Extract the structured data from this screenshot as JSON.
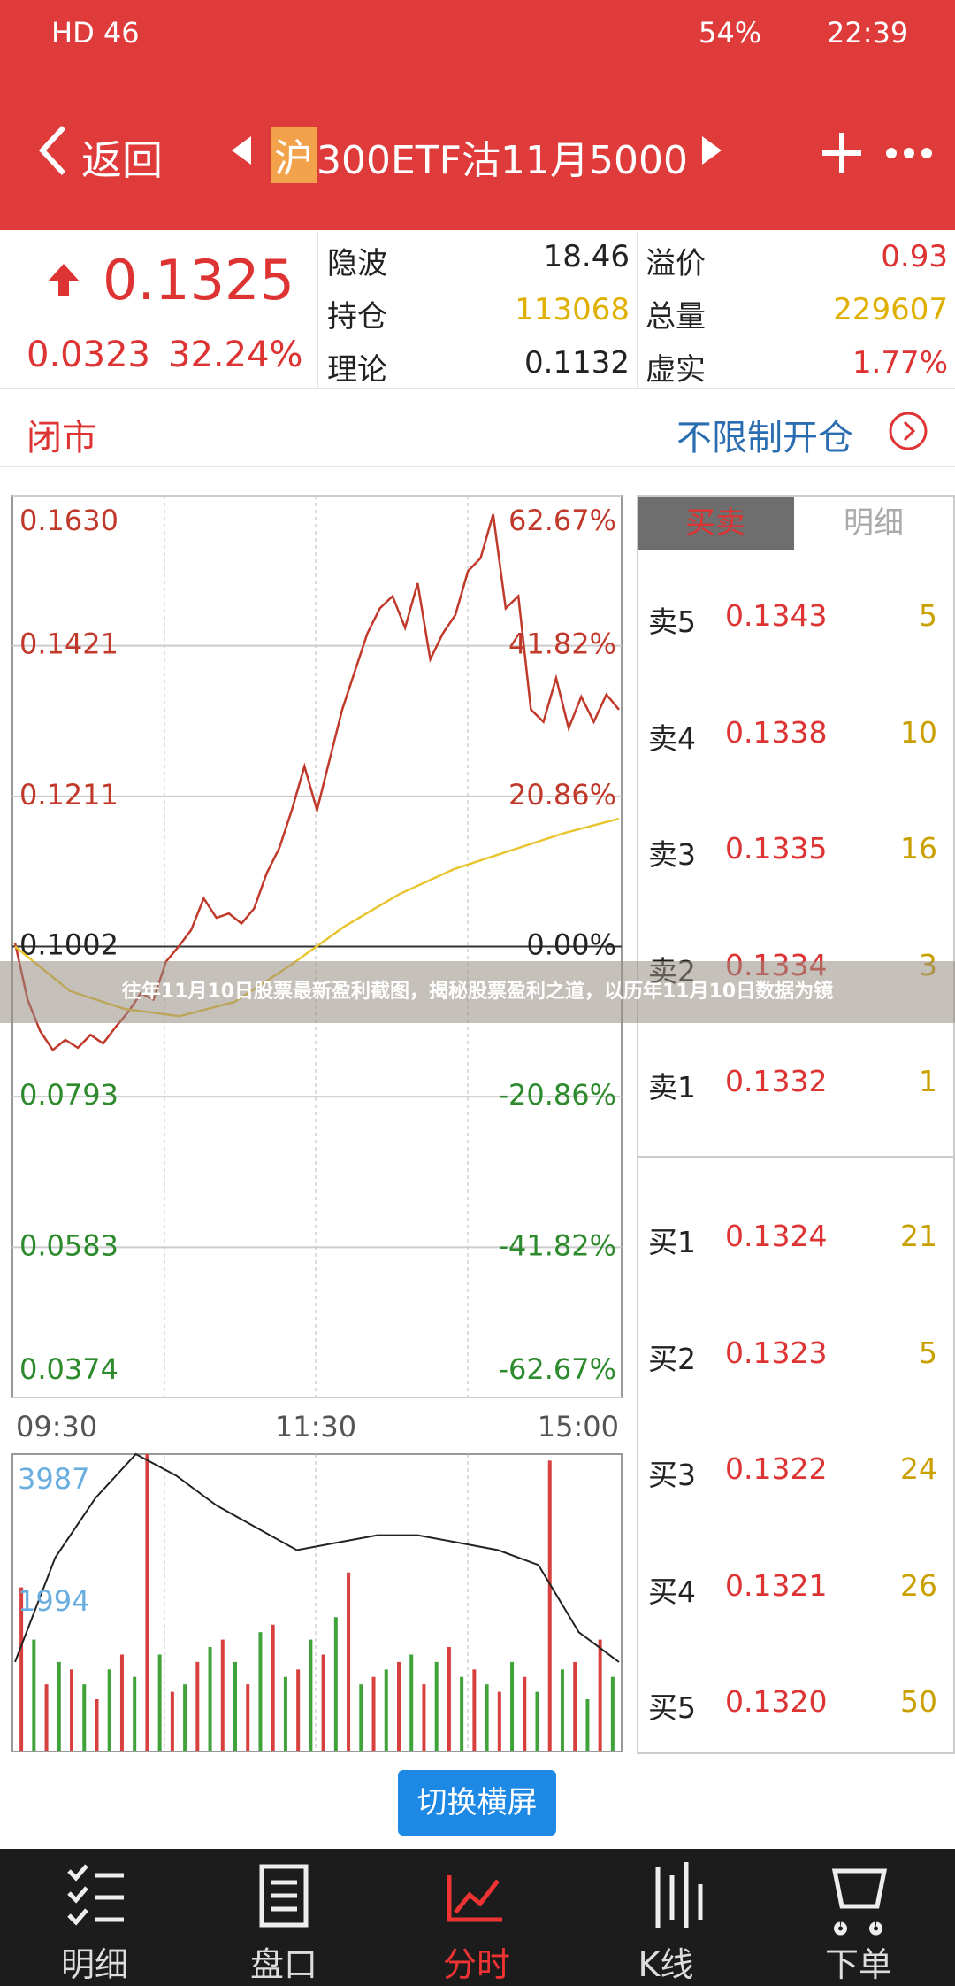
{
  "status_bar": {
    "network": "HD 46",
    "battery": "54%",
    "time": "22:39"
  },
  "nav": {
    "back": "返回",
    "market": "沪",
    "title": "300ETF沽11月5000"
  },
  "quote": {
    "price": "0.1325",
    "change": "0.0323",
    "change_pct": "32.24%",
    "stats": [
      {
        "label": "隐波",
        "value": "18.46"
      },
      {
        "label": "溢价",
        "value": "0.93"
      },
      {
        "label": "持仓",
        "value": "113068"
      },
      {
        "label": "总量",
        "value": "229607"
      },
      {
        "label": "理论",
        "value": "0.1132"
      },
      {
        "label": "虚实",
        "value": "1.77%"
      }
    ]
  },
  "session": {
    "status": "闭市",
    "open_limit": "不限制开仓"
  },
  "price_chart": {
    "type": "line",
    "ylim": [
      0.0374,
      0.163
    ],
    "yticks": [
      {
        "value": 0.163,
        "label": "0.1630"
      },
      0.1421,
      0.1211,
      0.1002,
      0.0793,
      0.0583,
      0.0374
    ],
    "pct_ticks": [
      "62.67%",
      "41.82%",
      "20.86%",
      "0.00%",
      "-20.86%",
      "-41.82%",
      "-62.67%"
    ],
    "x_labels": [
      "09:30",
      "11:30",
      "15:00"
    ],
    "series": [
      {
        "color": "#c0392b",
        "values": [
          0.1007,
          0.0928,
          0.0884,
          0.0858,
          0.0872,
          0.0861,
          0.0879,
          0.0867,
          0.089,
          0.0911,
          0.0937,
          0.0928,
          0.0981,
          0.1002,
          0.1025,
          0.1069,
          0.1042,
          0.1048,
          0.1034,
          0.1055,
          0.1104,
          0.1139,
          0.1192,
          0.1253,
          0.1192,
          0.1262,
          0.1332,
          0.1385,
          0.1438,
          0.1473,
          0.149,
          0.1446,
          0.1508,
          0.1402,
          0.1438,
          0.1464,
          0.1525,
          0.1543,
          0.1604,
          0.1473,
          0.149,
          0.1332,
          0.1315,
          0.1376,
          0.1306,
          0.135,
          0.1315,
          0.1353,
          0.1332
        ]
      },
      {
        "color": "#e8c530",
        "values": [
          0.1002,
          0.094,
          0.0915,
          0.0905,
          0.0925,
          0.0975,
          0.103,
          0.1075,
          0.111,
          0.1135,
          0.116,
          0.118
        ]
      }
    ]
  },
  "volume_chart": {
    "type": "bar",
    "ylim": [
      0,
      3987
    ],
    "yticks": [
      3987,
      1994
    ],
    "series": [
      {
        "color": "#d8403f",
        "values": [
          2200,
          900,
          1100,
          700,
          1300,
          3987,
          800,
          1200,
          1500,
          900,
          1700,
          1100,
          1300,
          2400,
          1000,
          1200,
          900,
          1400,
          1100,
          800,
          1000,
          3900,
          1200,
          1500
        ]
      },
      {
        "color": "#3fa33a",
        "values": [
          1500,
          1200,
          900,
          1100,
          1000,
          1300,
          900,
          1400,
          1200,
          1600,
          1000,
          1500,
          1800,
          900,
          1100,
          1300,
          1200,
          1000,
          900,
          1200,
          800,
          1100,
          700,
          1000
        ]
      }
    ],
    "line": {
      "color": "#222222",
      "values": [
        1200,
        2600,
        3400,
        3987,
        3700,
        3300,
        3000,
        2700,
        2800,
        2900,
        2900,
        2800,
        2700,
        2500,
        1600,
        1200
      ]
    }
  },
  "order_book": {
    "tabs": [
      "买卖",
      "明细"
    ],
    "sells": [
      {
        "label": "卖5",
        "price": "0.1343",
        "qty": "5"
      },
      {
        "label": "卖4",
        "price": "0.1338",
        "qty": "10"
      },
      {
        "label": "卖3",
        "price": "0.1335",
        "qty": "16"
      },
      {
        "label": "卖2",
        "price": "0.1334",
        "qty": "3"
      },
      {
        "label": "卖1",
        "price": "0.1332",
        "qty": "1"
      }
    ],
    "buys": [
      {
        "label": "买1",
        "price": "0.1324",
        "qty": "21"
      },
      {
        "label": "买2",
        "price": "0.1323",
        "qty": "5"
      },
      {
        "label": "买3",
        "price": "0.1322",
        "qty": "24"
      },
      {
        "label": "买4",
        "price": "0.1321",
        "qty": "26"
      },
      {
        "label": "买5",
        "price": "0.1320",
        "qty": "50"
      }
    ]
  },
  "rotate_button": "切换横屏",
  "banner": "往年11月10日股票最新盈利截图，揭秘股票盈利之道，以历年11月10日数据为镜",
  "tab_bar": [
    "明细",
    "盘口",
    "分时",
    "K线",
    "下单"
  ]
}
